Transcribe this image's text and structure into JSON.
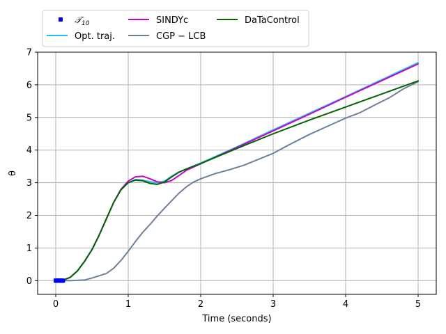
{
  "chart_data": {
    "type": "line",
    "xlabel": "Time (seconds)",
    "ylabel": "θ",
    "xlim": [
      -0.25,
      5.25
    ],
    "ylim": [
      -0.42,
      7.0
    ],
    "xticks": [
      0,
      1,
      2,
      3,
      4,
      5
    ],
    "yticks": [
      0,
      1,
      2,
      3,
      4,
      5,
      6,
      7
    ],
    "grid": true,
    "legend_position": "top-left, above plot",
    "series": [
      {
        "name": "$\\mathcal{T}_{10}$",
        "kind": "markers",
        "color": "#0000ff",
        "x": [
          0.0,
          0.011,
          0.022,
          0.033,
          0.044,
          0.056,
          0.067,
          0.078,
          0.089,
          0.1
        ],
        "y": [
          0.0,
          0.0,
          0.0,
          0.0,
          0.0,
          0.0,
          0.0,
          0.0,
          0.0,
          0.0
        ]
      },
      {
        "name": "Opt. traj.",
        "kind": "line",
        "color": "#1ec0f0",
        "x": [
          0.0,
          0.1,
          0.2,
          0.3,
          0.4,
          0.5,
          0.6,
          0.7,
          0.8,
          0.9,
          1.0,
          1.1,
          1.2,
          1.3,
          1.4,
          1.5,
          1.6,
          1.7,
          1.8,
          2.0,
          2.5,
          3.0,
          3.5,
          4.0,
          4.5,
          5.0
        ],
        "y": [
          0.0,
          0.01,
          0.1,
          0.3,
          0.6,
          0.95,
          1.4,
          1.9,
          2.4,
          2.8,
          3.0,
          3.1,
          3.08,
          3.03,
          3.0,
          3.05,
          3.2,
          3.33,
          3.42,
          3.6,
          4.1,
          4.62,
          5.13,
          5.64,
          6.16,
          6.68
        ]
      },
      {
        "name": "SINDYc",
        "kind": "line",
        "color": "#cc00cc",
        "x": [
          0.0,
          0.1,
          0.2,
          0.3,
          0.4,
          0.5,
          0.6,
          0.7,
          0.8,
          0.9,
          1.0,
          1.1,
          1.2,
          1.3,
          1.4,
          1.5,
          1.6,
          1.7,
          1.8,
          2.0,
          2.5,
          3.0,
          3.5,
          4.0,
          4.5,
          5.0
        ],
        "y": [
          0.0,
          0.01,
          0.1,
          0.3,
          0.6,
          0.95,
          1.4,
          1.9,
          2.4,
          2.8,
          3.05,
          3.18,
          3.2,
          3.12,
          3.03,
          3.0,
          3.07,
          3.22,
          3.38,
          3.58,
          4.08,
          4.59,
          5.1,
          5.62,
          6.13,
          6.64
        ]
      },
      {
        "name": "CGP − LCB",
        "kind": "line",
        "color": "#6b7f99",
        "x": [
          0.0,
          0.2,
          0.4,
          0.5,
          0.6,
          0.7,
          0.8,
          0.9,
          1.0,
          1.1,
          1.2,
          1.3,
          1.4,
          1.5,
          1.6,
          1.7,
          1.8,
          1.9,
          2.0,
          2.2,
          2.4,
          2.6,
          2.8,
          3.0,
          3.2,
          3.5,
          3.8,
          4.0,
          4.2,
          4.4,
          4.6,
          4.8,
          5.0
        ],
        "y": [
          0.0,
          0.0,
          0.02,
          0.08,
          0.15,
          0.22,
          0.38,
          0.62,
          0.9,
          1.2,
          1.48,
          1.72,
          1.98,
          2.22,
          2.45,
          2.68,
          2.87,
          3.02,
          3.12,
          3.28,
          3.4,
          3.54,
          3.72,
          3.9,
          4.14,
          4.48,
          4.78,
          4.98,
          5.15,
          5.38,
          5.6,
          5.88,
          6.1
        ]
      },
      {
        "name": "DaTaControl",
        "kind": "line",
        "color": "#006400",
        "x": [
          0.0,
          0.1,
          0.2,
          0.3,
          0.4,
          0.5,
          0.6,
          0.7,
          0.8,
          0.9,
          1.0,
          1.1,
          1.2,
          1.3,
          1.4,
          1.5,
          1.6,
          1.7,
          1.8,
          2.0,
          2.5,
          3.0,
          3.5,
          4.0,
          4.5,
          5.0
        ],
        "y": [
          0.0,
          0.01,
          0.1,
          0.3,
          0.6,
          0.95,
          1.4,
          1.9,
          2.4,
          2.78,
          3.0,
          3.08,
          3.06,
          2.98,
          2.95,
          3.02,
          3.18,
          3.32,
          3.42,
          3.59,
          4.05,
          4.5,
          4.92,
          5.32,
          5.72,
          6.12
        ]
      }
    ]
  }
}
